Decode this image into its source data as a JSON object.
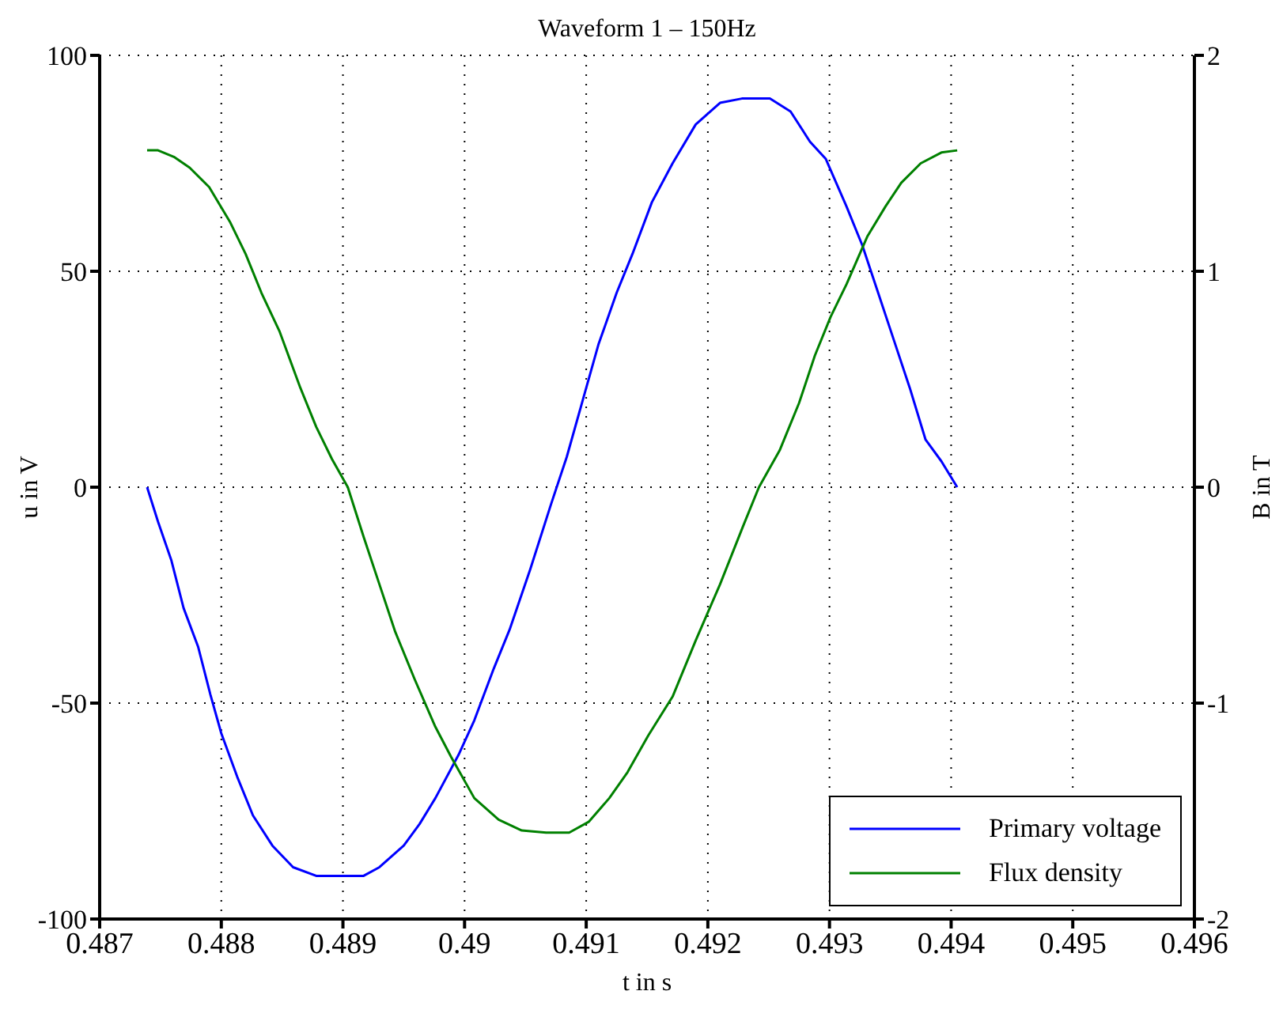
{
  "chart_data": {
    "type": "line",
    "title": "Waveform 1 – 150Hz",
    "xlabel": "t in s",
    "ylabel": "u in V",
    "y2label": "B in T",
    "xlim": [
      0.487,
      0.496
    ],
    "xticks": [
      0.487,
      0.488,
      0.489,
      0.49,
      0.491,
      0.492,
      0.493,
      0.494,
      0.495,
      0.496
    ],
    "ylim": [
      -100,
      100
    ],
    "yticks": [
      -100,
      -50,
      0,
      50,
      100
    ],
    "y2lim": [
      -2,
      2
    ],
    "y2ticks": [
      -2,
      -1,
      0,
      1,
      2
    ],
    "grid": true,
    "legend": "bottom right",
    "marker": "none",
    "line_style": "solid",
    "series": [
      {
        "name": "Primary voltage",
        "color": "#0000ff",
        "x": [
          0.48739,
          0.48748,
          0.48759,
          0.48769,
          0.48781,
          0.48791,
          0.488,
          0.48813,
          0.48826,
          0.48842,
          0.48859,
          0.48878,
          0.48895,
          0.48917,
          0.4893,
          0.4895,
          0.48963,
          0.48976,
          0.48995,
          0.49008,
          0.49024,
          0.49037,
          0.49054,
          0.49071,
          0.49084,
          0.49099,
          0.4911,
          0.49125,
          0.49138,
          0.49154,
          0.49171,
          0.4919,
          0.4921,
          0.49228,
          0.49251,
          0.49268,
          0.49284,
          0.49297,
          0.49314,
          0.49327,
          0.4934,
          0.49353,
          0.49366,
          0.49379,
          0.49392,
          0.49405
        ],
        "values": [
          0,
          -8,
          -17,
          -28,
          -37,
          -48,
          -57,
          -67,
          -76,
          -83,
          -88,
          -90,
          -90,
          -90,
          -88,
          -83,
          -78,
          -72,
          -62,
          -54,
          -42,
          -33,
          -19,
          -4,
          7,
          22,
          33,
          45,
          54,
          66,
          75,
          84,
          89,
          90,
          90,
          87,
          80,
          76,
          65,
          56,
          45,
          34,
          23,
          11,
          6,
          0
        ]
      },
      {
        "name": "Flux density",
        "color": "#008000",
        "axis": "y2",
        "x": [
          0.48739,
          0.48748,
          0.48761,
          0.48774,
          0.4879,
          0.48807,
          0.4882,
          0.48833,
          0.48848,
          0.48865,
          0.48878,
          0.48891,
          0.48904,
          0.48917,
          0.4893,
          0.48943,
          0.48959,
          0.48976,
          0.48989,
          0.49008,
          0.49028,
          0.49047,
          0.49067,
          0.49086,
          0.49102,
          0.49119,
          0.49134,
          0.49151,
          0.49171,
          0.4919,
          0.4921,
          0.49229,
          0.49242,
          0.49259,
          0.49275,
          0.49288,
          0.49301,
          0.49314,
          0.49331,
          0.49346,
          0.49359,
          0.49375,
          0.49392,
          0.49405
        ],
        "values": [
          1.56,
          1.56,
          1.53,
          1.48,
          1.39,
          1.23,
          1.08,
          0.9,
          0.72,
          0.46,
          0.28,
          0.13,
          0,
          -0.23,
          -0.45,
          -0.67,
          -0.89,
          -1.11,
          -1.25,
          -1.44,
          -1.54,
          -1.59,
          -1.6,
          -1.6,
          -1.55,
          -1.44,
          -1.32,
          -1.15,
          -0.97,
          -0.71,
          -0.45,
          -0.18,
          0,
          0.17,
          0.39,
          0.61,
          0.79,
          0.94,
          1.16,
          1.3,
          1.41,
          1.5,
          1.55,
          1.56
        ]
      }
    ]
  }
}
